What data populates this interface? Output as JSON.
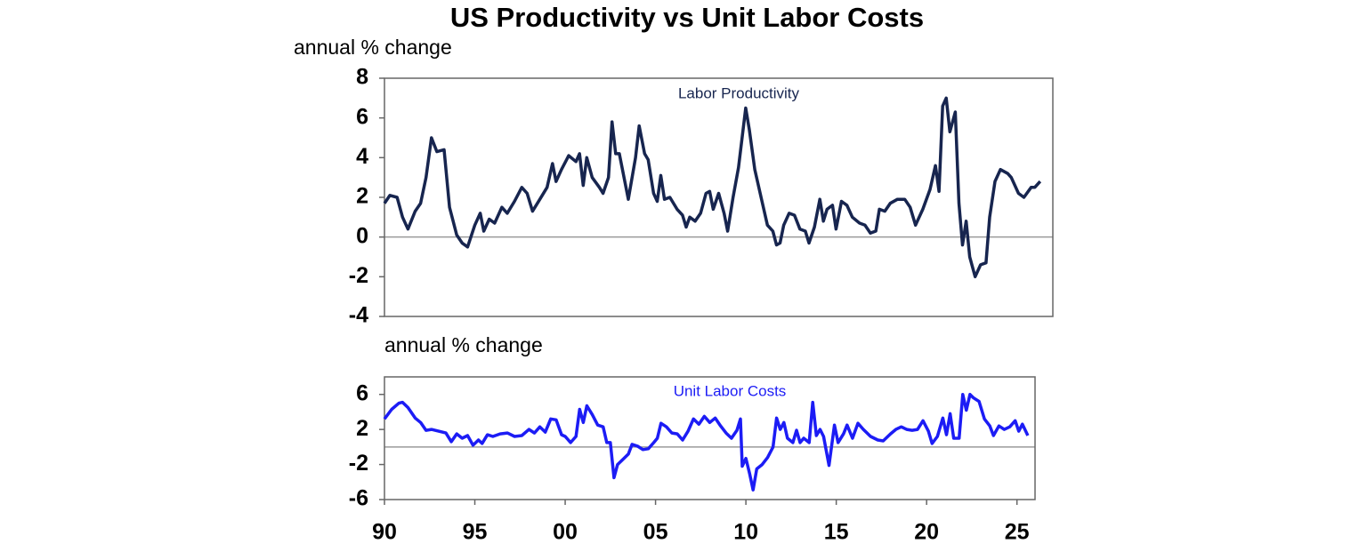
{
  "chart_data": [
    {
      "type": "line",
      "title": "US Productivity vs Unit Labor Costs",
      "y_label": "annual % change",
      "xlim": [
        1990,
        2027
      ],
      "ylim": [
        -4,
        8
      ],
      "yticks": [
        -4,
        -2,
        0,
        2,
        4,
        6,
        8
      ],
      "reference_line": 0,
      "series": [
        {
          "name": "Labor Productivity",
          "color": "#17254f",
          "x": [
            1990.0,
            1990.3,
            1990.7,
            1991.0,
            1991.3,
            1991.7,
            1992.0,
            1992.3,
            1992.6,
            1992.9,
            1993.3,
            1993.6,
            1994.0,
            1994.3,
            1994.6,
            1995.0,
            1995.3,
            1995.5,
            1995.8,
            1996.1,
            1996.5,
            1996.8,
            1997.2,
            1997.6,
            1997.9,
            1998.2,
            1998.6,
            1999.0,
            1999.3,
            1999.5,
            1999.8,
            2000.2,
            2000.6,
            2000.8,
            2001.0,
            2001.2,
            2001.5,
            2001.9,
            2002.1,
            2002.4,
            2002.6,
            2002.8,
            2003.0,
            2003.5,
            2003.9,
            2004.1,
            2004.4,
            2004.6,
            2004.9,
            2005.1,
            2005.3,
            2005.5,
            2005.8,
            2006.2,
            2006.5,
            2006.7,
            2006.9,
            2007.2,
            2007.5,
            2007.8,
            2008.0,
            2008.2,
            2008.5,
            2008.8,
            2009.0,
            2009.3,
            2009.6,
            2010.0,
            2010.2,
            2010.5,
            2010.9,
            2011.2,
            2011.5,
            2011.7,
            2011.9,
            2012.1,
            2012.4,
            2012.7,
            2013.0,
            2013.3,
            2013.5,
            2013.8,
            2014.1,
            2014.3,
            2014.5,
            2014.8,
            2015.0,
            2015.3,
            2015.6,
            2015.9,
            2016.3,
            2016.6,
            2016.9,
            2017.2,
            2017.4,
            2017.7,
            2018.0,
            2018.4,
            2018.8,
            2019.1,
            2019.4,
            2019.8,
            2020.2,
            2020.5,
            2020.7,
            2020.9,
            2021.1,
            2021.3,
            2021.6,
            2021.8,
            2022.0,
            2022.2,
            2022.4,
            2022.7,
            2023.0,
            2023.3,
            2023.5,
            2023.8,
            2024.1,
            2024.5,
            2024.7,
            2025.1,
            2025.4,
            2025.8,
            2026.0,
            2026.3
          ],
          "values": [
            1.7,
            2.1,
            2.0,
            1.0,
            0.4,
            1.3,
            1.7,
            3.0,
            5.0,
            4.3,
            4.4,
            1.5,
            0.1,
            -0.3,
            -0.5,
            0.6,
            1.2,
            0.3,
            0.9,
            0.7,
            1.5,
            1.2,
            1.8,
            2.5,
            2.2,
            1.3,
            1.9,
            2.5,
            3.7,
            2.8,
            3.4,
            4.1,
            3.8,
            4.2,
            2.6,
            4.0,
            3.0,
            2.5,
            2.2,
            3.0,
            5.8,
            4.2,
            4.2,
            1.9,
            4.0,
            5.6,
            4.2,
            3.9,
            2.2,
            1.8,
            3.1,
            1.9,
            2.0,
            1.4,
            1.1,
            0.5,
            1.0,
            0.8,
            1.2,
            2.2,
            2.3,
            1.4,
            2.2,
            1.2,
            0.3,
            2.0,
            3.5,
            6.5,
            5.4,
            3.4,
            1.8,
            0.6,
            0.3,
            -0.4,
            -0.3,
            0.6,
            1.2,
            1.1,
            0.4,
            0.3,
            -0.3,
            0.5,
            1.9,
            0.8,
            1.4,
            1.6,
            0.4,
            1.8,
            1.6,
            1.0,
            0.7,
            0.6,
            0.2,
            0.3,
            1.4,
            1.3,
            1.7,
            1.9,
            1.9,
            1.5,
            0.6,
            1.4,
            2.4,
            3.6,
            2.3,
            6.6,
            7.0,
            5.3,
            6.3,
            1.7,
            -0.4,
            0.8,
            -1.0,
            -2.0,
            -1.4,
            -1.3,
            1.0,
            2.8,
            3.4,
            3.2,
            3.0,
            2.2,
            2.0,
            2.5,
            2.5,
            2.8
          ]
        }
      ]
    },
    {
      "type": "line",
      "y_label": "annual % change",
      "xlim": [
        1990,
        2026
      ],
      "ylim": [
        -6,
        8
      ],
      "yticks": [
        -6,
        -2,
        2,
        6
      ],
      "reference_line": 0,
      "xticks": [
        {
          "value": 1990,
          "label": "90"
        },
        {
          "value": 1995,
          "label": "95"
        },
        {
          "value": 2000,
          "label": "00"
        },
        {
          "value": 2005,
          "label": "05"
        },
        {
          "value": 2010,
          "label": "10"
        },
        {
          "value": 2015,
          "label": "15"
        },
        {
          "value": 2020,
          "label": "20"
        },
        {
          "value": 2025,
          "label": "25"
        }
      ],
      "series": [
        {
          "name": "Unit Labor Costs",
          "color": "#1c1cf5",
          "x": [
            1990.0,
            1990.4,
            1990.8,
            1991.0,
            1991.3,
            1991.7,
            1992.0,
            1992.3,
            1992.6,
            1993.0,
            1993.4,
            1993.7,
            1994.0,
            1994.3,
            1994.6,
            1994.9,
            1995.2,
            1995.4,
            1995.7,
            1996.0,
            1996.4,
            1996.8,
            1997.2,
            1997.6,
            1998.0,
            1998.3,
            1998.6,
            1998.9,
            1999.2,
            1999.5,
            1999.8,
            2000.0,
            2000.3,
            2000.6,
            2000.8,
            2001.0,
            2001.2,
            2001.5,
            2001.8,
            2002.1,
            2002.3,
            2002.5,
            2002.7,
            2002.9,
            2003.2,
            2003.5,
            2003.7,
            2004.0,
            2004.3,
            2004.6,
            2004.9,
            2005.1,
            2005.3,
            2005.6,
            2005.9,
            2006.2,
            2006.5,
            2006.8,
            2007.1,
            2007.4,
            2007.7,
            2008.0,
            2008.3,
            2008.6,
            2008.9,
            2009.2,
            2009.5,
            2009.7,
            2009.8,
            2010.0,
            2010.2,
            2010.4,
            2010.6,
            2010.9,
            2011.2,
            2011.5,
            2011.7,
            2011.9,
            2012.1,
            2012.3,
            2012.6,
            2012.8,
            2013.0,
            2013.2,
            2013.5,
            2013.7,
            2013.9,
            2014.1,
            2014.3,
            2014.6,
            2014.9,
            2015.1,
            2015.4,
            2015.6,
            2015.9,
            2016.2,
            2016.5,
            2016.9,
            2017.3,
            2017.6,
            2018.0,
            2018.3,
            2018.6,
            2018.9,
            2019.2,
            2019.5,
            2019.8,
            2020.1,
            2020.3,
            2020.6,
            2020.9,
            2021.1,
            2021.3,
            2021.5,
            2021.8,
            2022.0,
            2022.2,
            2022.4,
            2022.6,
            2022.9,
            2023.2,
            2023.5,
            2023.7,
            2024.0,
            2024.3,
            2024.6,
            2024.9,
            2025.1,
            2025.3,
            2025.6
          ],
          "values": [
            3.2,
            4.3,
            5.0,
            5.1,
            4.5,
            3.3,
            2.8,
            1.9,
            2.0,
            1.8,
            1.6,
            0.6,
            1.5,
            1.0,
            1.3,
            0.2,
            0.8,
            0.4,
            1.4,
            1.2,
            1.5,
            1.6,
            1.2,
            1.3,
            2.0,
            1.6,
            2.3,
            1.7,
            3.2,
            3.1,
            1.4,
            1.2,
            0.5,
            1.2,
            4.3,
            2.8,
            4.7,
            3.7,
            2.5,
            2.3,
            0.5,
            0.5,
            -3.5,
            -2.0,
            -1.4,
            -0.8,
            0.3,
            0.1,
            -0.3,
            -0.2,
            0.5,
            1.0,
            2.7,
            2.3,
            1.6,
            1.5,
            0.8,
            1.8,
            3.2,
            2.6,
            3.5,
            2.8,
            3.3,
            2.4,
            1.6,
            1.0,
            1.9,
            3.2,
            -2.2,
            -1.3,
            -3.0,
            -4.9,
            -2.5,
            -2.0,
            -1.2,
            0.0,
            3.3,
            2.0,
            2.8,
            1.0,
            0.5,
            1.9,
            0.5,
            1.0,
            0.5,
            5.1,
            1.3,
            2.0,
            1.2,
            -2.1,
            2.5,
            0.5,
            1.5,
            2.5,
            1.0,
            2.7,
            2.0,
            1.2,
            0.8,
            0.7,
            1.5,
            2.0,
            2.3,
            2.0,
            1.9,
            2.0,
            3.0,
            1.8,
            0.4,
            1.2,
            3.3,
            1.4,
            3.8,
            1.0,
            1.0,
            6.0,
            4.2,
            6.0,
            5.6,
            5.2,
            3.2,
            2.4,
            1.3,
            2.4,
            2.0,
            2.3,
            3.0,
            1.8,
            2.6,
            1.3
          ]
        }
      ]
    }
  ]
}
